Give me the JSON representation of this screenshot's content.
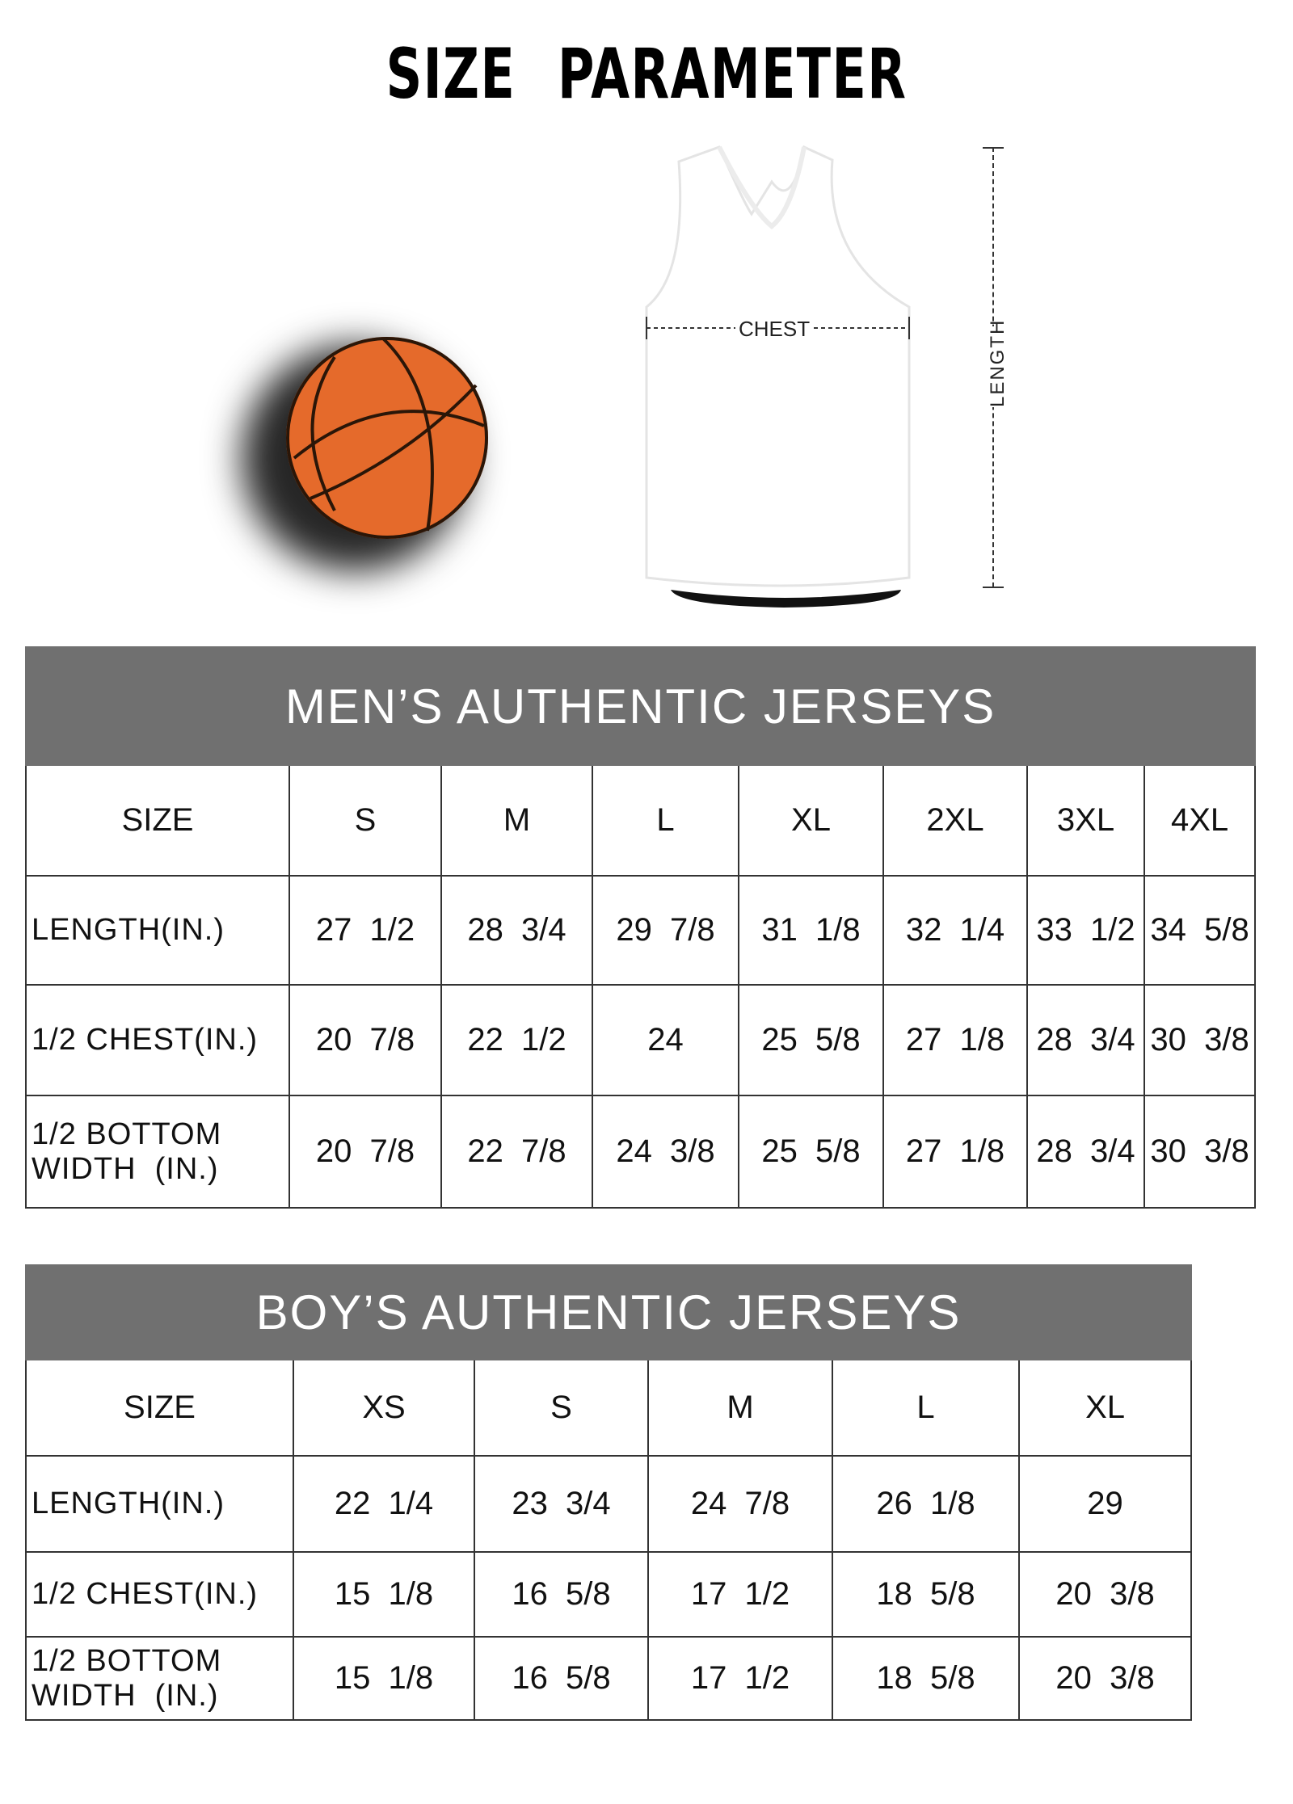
{
  "title": "SIZE PARAMETER",
  "diagram": {
    "chest_label": "CHEST",
    "length_label": "LENGTH",
    "ball_color": "#e56a2b"
  },
  "mens": {
    "title": "MEN’S AUTHENTIC JERSEYS",
    "header_color": "#707070",
    "columns": [
      "SIZE",
      "S",
      "M",
      "L",
      "XL",
      "2XL",
      "3XL",
      "4XL"
    ],
    "rows": [
      [
        "LENGTH(IN.)",
        "27  1/2",
        "28  3/4",
        "29  7/8",
        "31  1/8",
        "32  1/4",
        "33  1/2",
        "34  5/8"
      ],
      [
        "1/2 CHEST(IN.)",
        "20  7/8",
        "22  1/2",
        "24",
        "25  5/8",
        "27  1/8",
        "28  3/4",
        "30  3/8"
      ],
      [
        "1/2 BOTTOM WIDTH  (IN.)",
        "20  7/8",
        "22  7/8",
        "24  3/8",
        "25  5/8",
        "27  1/8",
        "28  3/4",
        "30  3/8"
      ]
    ]
  },
  "boys": {
    "title": "BOY’S AUTHENTIC JERSEYS",
    "columns": [
      "SIZE",
      "XS",
      "S",
      "M",
      "L",
      "XL"
    ],
    "rows": [
      [
        "LENGTH(IN.)",
        "22  1/4",
        "23  3/4",
        "24  7/8",
        "26  1/8",
        "29"
      ],
      [
        "1/2 CHEST(IN.)",
        "15  1/8",
        "16  5/8",
        "17  1/2",
        "18  5/8",
        "20  3/8"
      ],
      [
        "1/2 BOTTOM WIDTH  (IN.)",
        "15  1/8",
        "16  5/8",
        "17  1/2",
        "18  5/8",
        "20  3/8"
      ]
    ]
  }
}
